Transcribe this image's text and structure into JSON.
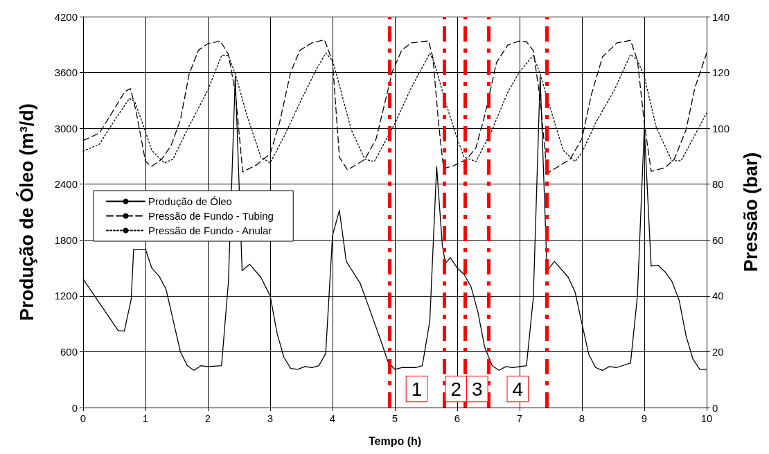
{
  "chart_data": {
    "type": "line",
    "xlabel": "Tempo (h)",
    "ylabel": "Produção de Óleo (m³/d)",
    "y2label": "Pressão (bar)",
    "xlim": [
      0,
      10
    ],
    "xticks": [
      0,
      1,
      2,
      3,
      4,
      5,
      6,
      7,
      8,
      9,
      10
    ],
    "ylim": [
      0,
      4200
    ],
    "yticks": [
      0,
      600,
      1200,
      1800,
      2400,
      3000,
      3600,
      4200
    ],
    "y2lim": [
      0,
      140
    ],
    "y2ticks": [
      0,
      20,
      40,
      60,
      80,
      100,
      120,
      140
    ],
    "grid": true,
    "legend": "left",
    "marker": "none",
    "series": [
      {
        "name": "Produção de Óleo",
        "color": "#000000",
        "line_style": "solid",
        "x": [
          0,
          0.56,
          0.66,
          0.77,
          0.81,
          1.0,
          1.1,
          1.22,
          1.33,
          1.56,
          1.67,
          1.78,
          1.89,
          2.0,
          2.22,
          2.33,
          2.44,
          2.55,
          2.67,
          2.85,
          3.0,
          3.11,
          3.22,
          3.33,
          3.44,
          3.56,
          3.67,
          3.78,
          3.89,
          4.0,
          4.11,
          4.22,
          4.44,
          4.56,
          4.78,
          4.89,
          5.0,
          5.11,
          5.33,
          5.44,
          5.56,
          5.67,
          5.76,
          5.81,
          5.89,
          6.0,
          6.11,
          6.22,
          6.33,
          6.44,
          6.56,
          6.67,
          6.78,
          6.89,
          7.11,
          7.22,
          7.33,
          7.44,
          7.56,
          7.78,
          7.89,
          8.0,
          8.11,
          8.22,
          8.33,
          8.44,
          8.56,
          8.78,
          8.89,
          9.0,
          9.11,
          9.22,
          9.33,
          9.44,
          9.56,
          9.67,
          9.78,
          9.89,
          10
        ],
        "values": [
          1380,
          830,
          820,
          1160,
          1700,
          1700,
          1500,
          1410,
          1270,
          600,
          450,
          400,
          450,
          440,
          450,
          1350,
          3560,
          1470,
          1540,
          1400,
          1200,
          800,
          540,
          420,
          410,
          440,
          430,
          450,
          580,
          1850,
          2120,
          1570,
          1340,
          1120,
          710,
          490,
          410,
          430,
          430,
          450,
          930,
          2590,
          1750,
          1550,
          1610,
          1500,
          1430,
          1300,
          1030,
          650,
          450,
          400,
          440,
          430,
          450,
          1180,
          3560,
          1470,
          1570,
          1400,
          1240,
          900,
          570,
          430,
          400,
          440,
          430,
          480,
          1200,
          3010,
          1520,
          1530,
          1460,
          1360,
          1150,
          770,
          520,
          410,
          410
        ]
      },
      {
        "name": "Pressão de Fundo - Tubing",
        "color": "#000000",
        "line_style": "dashed",
        "axis": "y2",
        "x": [
          0,
          0.26,
          0.48,
          0.67,
          0.76,
          0.85,
          1.0,
          1.1,
          1.26,
          1.41,
          1.56,
          1.7,
          1.85,
          2.0,
          2.2,
          2.33,
          2.44,
          2.56,
          2.78,
          3.0,
          3.15,
          3.33,
          3.48,
          3.67,
          3.87,
          4.0,
          4.11,
          4.24,
          4.52,
          4.7,
          4.96,
          5.11,
          5.26,
          5.54,
          5.61,
          5.7,
          5.78,
          5.93,
          6.15,
          6.3,
          6.44,
          6.63,
          6.81,
          7.0,
          7.11,
          7.22,
          7.33,
          7.44,
          7.59,
          7.81,
          8.0,
          8.15,
          8.33,
          8.56,
          8.78,
          8.89,
          9.0,
          9.11,
          9.33,
          9.48,
          9.67,
          9.81,
          10
        ],
        "values": [
          95.6,
          98.3,
          106.2,
          113.2,
          114.2,
          106,
          88.1,
          86.4,
          88.9,
          93.8,
          103,
          119.4,
          128,
          130.3,
          131.3,
          126.5,
          112.9,
          84.4,
          86.9,
          90.9,
          102,
          120.3,
          128,
          130.6,
          131.7,
          124,
          89.7,
          85.1,
          88.9,
          96.3,
          120.3,
          128,
          130.6,
          131.3,
          125.3,
          102,
          85.6,
          86.5,
          88.9,
          93,
          104.5,
          123.6,
          129.8,
          131.3,
          131,
          127.8,
          110.4,
          83.9,
          85.9,
          88.9,
          96.3,
          112,
          125.6,
          130.6,
          131.5,
          124.3,
          102,
          84.6,
          85.9,
          88.9,
          99.5,
          114.4,
          126.9
        ]
      },
      {
        "name": "Pressão de Fundo - Anular",
        "color": "#000000",
        "line_style": "dotted",
        "axis": "y2",
        "x": [
          0,
          0.26,
          0.48,
          0.74,
          0.83,
          1.0,
          1.1,
          1.3,
          1.44,
          1.67,
          2.0,
          2.22,
          2.33,
          2.44,
          2.63,
          2.85,
          3.0,
          3.22,
          3.52,
          3.74,
          3.89,
          4.0,
          4.11,
          4.3,
          4.52,
          4.67,
          5.0,
          5.26,
          5.56,
          5.63,
          5.81,
          6.0,
          6.11,
          6.3,
          6.56,
          6.81,
          7.0,
          7.22,
          7.33,
          7.48,
          7.7,
          7.89,
          8.0,
          8.22,
          8.52,
          8.78,
          8.89,
          9.0,
          9.19,
          9.44,
          9.59,
          10
        ],
        "values": [
          91.8,
          94.3,
          102,
          110.7,
          109.5,
          98.8,
          92.1,
          87.6,
          88.9,
          99.5,
          113.7,
          126.1,
          126.1,
          119.4,
          104.5,
          89.7,
          87.6,
          97,
          111.2,
          121.1,
          126.9,
          124.3,
          115.4,
          99.5,
          88.9,
          88.1,
          101.8,
          114.4,
          126.9,
          123.6,
          109.5,
          96.3,
          89.7,
          88.1,
          99.5,
          112.9,
          120.3,
          126.1,
          119.4,
          108,
          92.1,
          88.1,
          91.3,
          102,
          113.7,
          126.5,
          124.3,
          118.6,
          100.5,
          88.4,
          88.4,
          105.5
        ]
      }
    ],
    "ref_lines": [
      {
        "axis": "x",
        "value": 4.91,
        "color": "#ff0000",
        "line_style": "dashdot"
      },
      {
        "axis": "x",
        "value": 5.79,
        "color": "#ff0000",
        "line_style": "dashdot"
      },
      {
        "axis": "x",
        "value": 6.13,
        "color": "#ff0000",
        "line_style": "dashdot"
      },
      {
        "axis": "x",
        "value": 6.5,
        "color": "#ff0000",
        "line_style": "dashdot"
      },
      {
        "axis": "x",
        "value": 7.44,
        "color": "#ff0000",
        "line_style": "dashdot"
      }
    ],
    "annotations": [
      {
        "text": "1",
        "x": 5.35,
        "y": 200
      },
      {
        "text": "2",
        "x": 5.98,
        "y": 200
      },
      {
        "text": "3",
        "x": 6.32,
        "y": 200
      },
      {
        "text": "4",
        "x": 6.97,
        "y": 200
      }
    ]
  }
}
